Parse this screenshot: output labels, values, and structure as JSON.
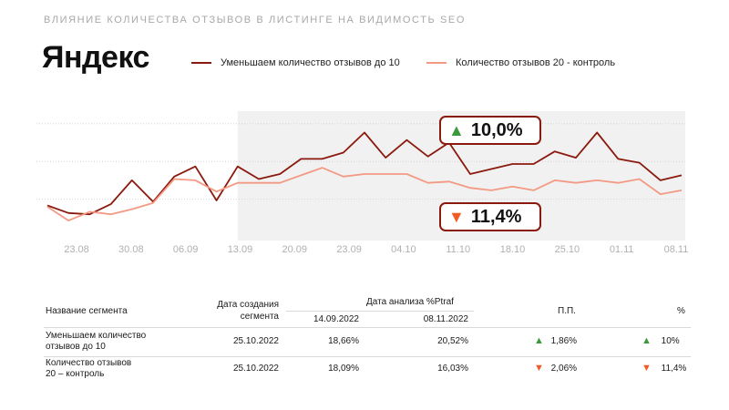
{
  "header": {
    "subtitle": "ВЛИЯНИЕ КОЛИЧЕСТВА ОТЗЫВОВ В ЛИСТИНГЕ НА ВИДИМОСТЬ SEO",
    "brand": "Яндекс"
  },
  "colors": {
    "series_a": "#8b1a0e",
    "series_b": "#f39a84",
    "shade": "#f1f1f1",
    "up": "#3a9a3c",
    "down": "#f05a24"
  },
  "badges": {
    "up": {
      "icon": "triangle-up-icon",
      "text": "10,0%"
    },
    "down": {
      "icon": "triangle-down-icon",
      "text": "11,4%"
    }
  },
  "chart_data": {
    "type": "line",
    "x_ticks": [
      "23.08",
      "30.08",
      "06.09",
      "13.09",
      "20.09",
      "23.09",
      "04.10",
      "11.10",
      "18.10",
      "25.10",
      "01.11",
      "08.11"
    ],
    "shaded_from_index": 9,
    "grid": true,
    "series": [
      {
        "name": "Уменьшаем количество отзывов до 10",
        "values": [
          12.5,
          11.9,
          11.8,
          12.6,
          14.5,
          12.8,
          14.8,
          15.6,
          12.9,
          15.6,
          14.6,
          15.0,
          16.2,
          16.2,
          16.7,
          18.3,
          16.3,
          17.7,
          16.4,
          17.5,
          15.0,
          15.4,
          15.8,
          15.8,
          16.8,
          16.3,
          18.3,
          16.2,
          15.9,
          14.5,
          14.9
        ]
      },
      {
        "name": "Количество отзывов 20 - контроль",
        "values": [
          12.4,
          11.3,
          12.0,
          11.8,
          12.2,
          12.7,
          14.6,
          14.5,
          13.6,
          14.3,
          14.3,
          14.3,
          14.9,
          15.5,
          14.8,
          15.0,
          15.0,
          15.0,
          14.3,
          14.4,
          13.9,
          13.7,
          14.0,
          13.7,
          14.5,
          14.3,
          14.5,
          14.3,
          14.6,
          13.4,
          13.7
        ]
      }
    ]
  },
  "table": {
    "headers": {
      "segment": "Название сегмента",
      "created": "Дата создания сегмента",
      "analysis": "Дата анализа %Ptraf",
      "date1": "14.09.2022",
      "date2": "08.11.2022",
      "pp": "П.П.",
      "pct": "%"
    },
    "rows": [
      {
        "segment_line1": "Уменьшаем количество",
        "segment_line2": "отзывов до 10",
        "created": "25.10.2022",
        "v1": "18,66%",
        "v2": "20,52%",
        "pp_dir": "up",
        "pp": "1,86%",
        "pct_dir": "up",
        "pct": "10%"
      },
      {
        "segment_line1": "Количество отзывов",
        "segment_line2": "20 – контроль",
        "created": "25.10.2022",
        "v1": "18,09%",
        "v2": "16,03%",
        "pp_dir": "down",
        "pp": "2,06%",
        "pct_dir": "down",
        "pct": "11,4%"
      }
    ]
  }
}
